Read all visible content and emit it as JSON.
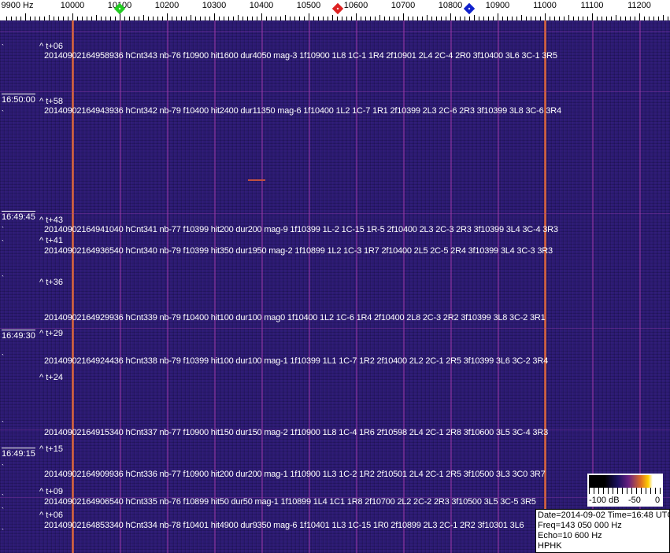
{
  "axis": {
    "unit_label": "9900 Hz",
    "labels": [
      "10000",
      "10100",
      "10200",
      "10300",
      "10400",
      "10500",
      "10600",
      "10700",
      "10800",
      "10900",
      "11000",
      "11100",
      "11200"
    ],
    "range_hz": [
      9860,
      11275
    ],
    "markers": [
      {
        "name": "green-marker",
        "freq_hz": 10100,
        "color": "#22cc22"
      },
      {
        "name": "red-marker",
        "freq_hz": 10562,
        "color": "#dd2222"
      },
      {
        "name": "blue-marker",
        "freq_hz": 10840,
        "color": "#1122cc"
      }
    ]
  },
  "waterfall": {
    "background_color": "#2b1b72",
    "strong_lines_hz": [
      10000,
      11000
    ],
    "weak_lines_hz": [
      10100,
      10200,
      10300,
      10400,
      10500,
      10600,
      10700,
      10800,
      10900,
      11100,
      11200
    ]
  },
  "time_labels": [
    "16:50:00",
    "16:49:45",
    "16:49:30",
    "16:49:15"
  ],
  "t_markers": [
    "^ t+06",
    "^ t+58",
    "^ t+43",
    "^ t+41",
    "^ t+36",
    "^ t+29",
    "^ t+24",
    "^ t+15",
    "^ t+09",
    "^ t+06"
  ],
  "rows": [
    "20140902164958936 hCnt343 nb-76 f10900 hit1600 dur4050 mag-3 1f10900 1L8 1C-1 1R4 2f10901 2L4 2C-4 2R0 3f10400 3L6 3C-1 3R5",
    "20140902164943936 hCnt342 nb-79 f10400 hit2400 dur11350 mag-6 1f10400 1L2 1C-7 1R1 2f10399 2L3 2C-6 2R3 3f10399 3L8 3C-6 3R4",
    "20140902164941040 hCnt341 nb-77 f10399 hit200 dur200 mag-9 1f10399 1L-2 1C-15 1R-5 2f10400 2L3 2C-3 2R3 3f10399 3L4 3C-4 3R3",
    "20140902164936540 hCnt340 nb-79 f10399 hit350 dur1950 mag-2 1f10899 1L2 1C-3 1R7 2f10400 2L5 2C-5 2R4 3f10399 3L4 3C-3 3R3",
    "20140902164929936 hCnt339 nb-79 f10400 hit100 dur100 mag0 1f10400 1L2 1C-6 1R4 2f10400 2L8 2C-3 2R2 3f10399 3L8 3C-2 3R1",
    "20140902164924436 hCnt338 nb-79 f10399 hit100 dur100 mag-1 1f10399 1L1 1C-7 1R2 2f10400 2L2 2C-1 2R5 3f10399 3L6 3C-2 3R4",
    "20140902164915340 hCnt337 nb-77 f10900 hit150 dur150 mag-2 1f10900 1L8 1C-4 1R6 2f10598 2L4 2C-1 2R8 3f10600 3L5 3C-4 3R3",
    "20140902164909936 hCnt336 nb-77 f10900 hit200 dur200 mag-1 1f10900 1L3 1C-2 1R2 2f10501 2L4 2C-1 2R5 3f10500 3L3 3C0 3R7",
    "20140902164906540 hCnt335 nb-76 f10899 hit50 dur50 mag-1 1f10899 1L4 1C1 1R8 2f10700 2L2 2C-2 2R3 3f10500 3L5 3C-5 3R5",
    "20140902164853340 hCnt334 nb-78 f10401 hit4900 dur9350 mag-6 1f10401 1L3 1C-15 1R0 2f10899 2L3 2C-1 2R2 3f10301 3L6"
  ],
  "colorbar": {
    "labels": [
      "-100 dB",
      "-50",
      "0"
    ]
  },
  "info": {
    "date_time": "Date=2014-09-02 Time=16:48 UTC",
    "freq": "Freq=143 050 000 Hz",
    "echo": "Echo=10 600 Hz",
    "station": "HPHK"
  }
}
